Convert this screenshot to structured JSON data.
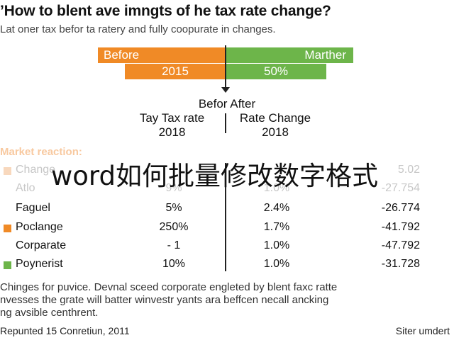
{
  "headline": "’How to blent ave imngts of he tax rate change?",
  "subhead": "Lat oner tax befor ta ratery and fully coopurate in changes.",
  "comparison": {
    "before_label": "Before",
    "after_label": "Marther",
    "before_value": "2015",
    "after_value": "50%",
    "accent_before": "#f08a26",
    "accent_after": "#6db54a"
  },
  "columns": {
    "center_title": "Befor After",
    "left_line1": "Tay Tax rate",
    "left_line2": "2018",
    "right_line1": "Rate Change",
    "right_line2": "2018"
  },
  "market_label": "Market reaction:",
  "rows": [
    {
      "name": "Change",
      "v1": "",
      "v2": "",
      "v3": "5.02",
      "color": "#f8d8bd"
    },
    {
      "name": "Atlo",
      "v1": "9%",
      "v2": "1.0%",
      "v3": "-27.754",
      "color": ""
    },
    {
      "name": "Faguel",
      "v1": "5%",
      "v2": "2.4%",
      "v3": "-26.774",
      "color": ""
    },
    {
      "name": "Poclange",
      "v1": "250%",
      "v2": "1.7%",
      "v3": "-41.792",
      "color": "#f08a26"
    },
    {
      "name": "Corparate",
      "v1": "- 1",
      "v2": "1.0%",
      "v3": "-47.792",
      "color": ""
    },
    {
      "name": "Poynerist",
      "v1": "10%",
      "v2": "1.0%",
      "v3": "-31.728",
      "color": "#6db54a"
    }
  ],
  "overlay_text": "word如何批量修改数字格式",
  "notes": [
    "Chinges for puvice. Devnal sceed corporate engleted by blent faxc ratte",
    "nvesses the grate will batter winvestr yants ara beffcen necall ancking",
    "ng avsible centhrent."
  ],
  "footer": {
    "left": "Repunted 15 Conretiun, 2011",
    "right": "Siter umdert"
  }
}
